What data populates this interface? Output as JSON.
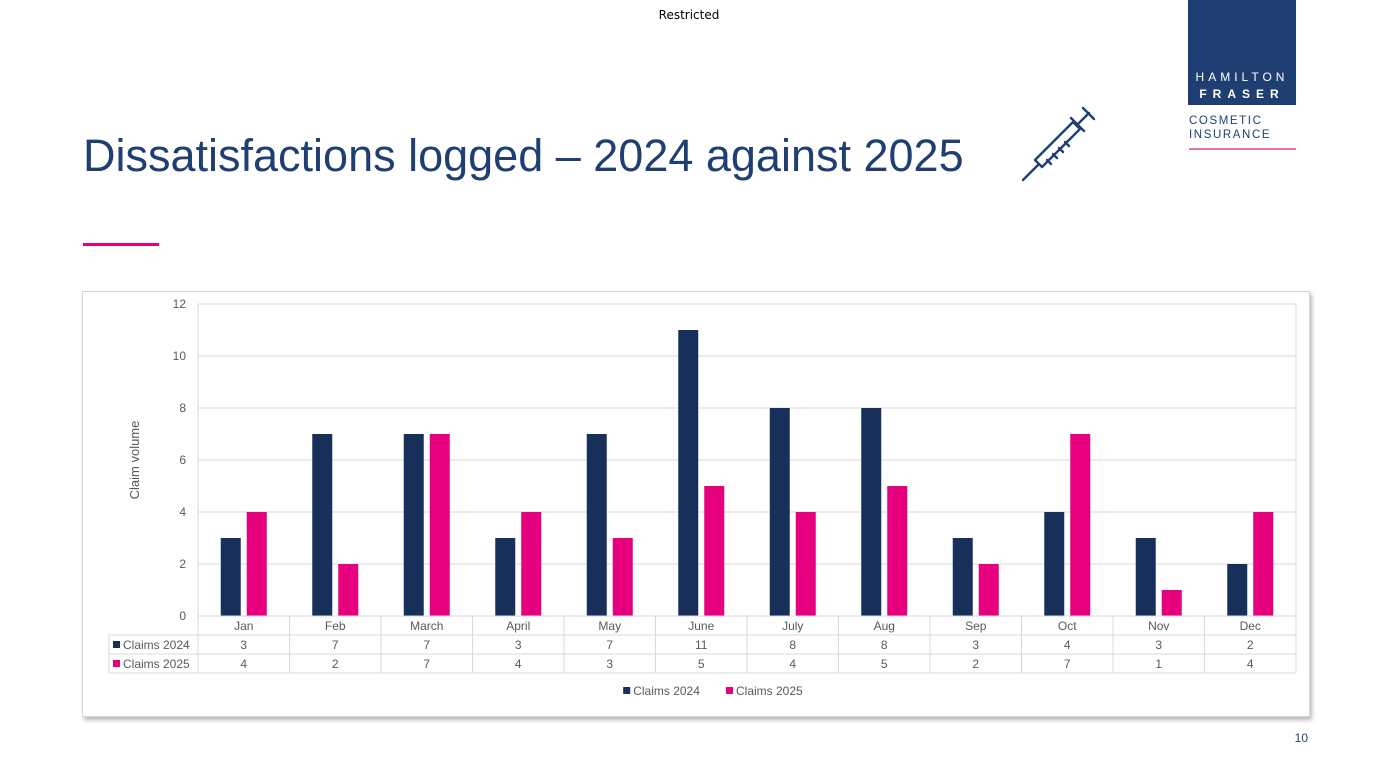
{
  "header": {
    "classification": "Restricted"
  },
  "logo": {
    "line1": "HAMILTON",
    "line2": "FRASER",
    "sub1": "COSMETIC",
    "sub2": "INSURANCE"
  },
  "slide": {
    "title": "Dissatisfactions logged – 2024 against 2025",
    "page_number": "10"
  },
  "icons": {
    "syringe": "syringe-icon"
  },
  "colors": {
    "navy": "#1f3f73",
    "series_2024": "#17305a",
    "series_2025": "#e6007e",
    "accent": "#e6007e"
  },
  "chart_data": {
    "type": "bar",
    "title": "",
    "xlabel": "",
    "ylabel": "Claim volume",
    "ylim": [
      0,
      12
    ],
    "yticks": [
      0,
      2,
      4,
      6,
      8,
      10,
      12
    ],
    "grid": true,
    "legend": "bottom",
    "data_table": true,
    "categories": [
      "Jan",
      "Feb",
      "March",
      "April",
      "May",
      "June",
      "July",
      "Aug",
      "Sep",
      "Oct",
      "Nov",
      "Dec"
    ],
    "series": [
      {
        "name": "Claims 2024",
        "color": "#17305a",
        "values": [
          3,
          7,
          7,
          3,
          7,
          11,
          8,
          8,
          3,
          4,
          3,
          2
        ]
      },
      {
        "name": "Claims 2025",
        "color": "#e6007e",
        "values": [
          4,
          2,
          7,
          4,
          3,
          5,
          4,
          5,
          2,
          7,
          1,
          4
        ]
      }
    ]
  }
}
